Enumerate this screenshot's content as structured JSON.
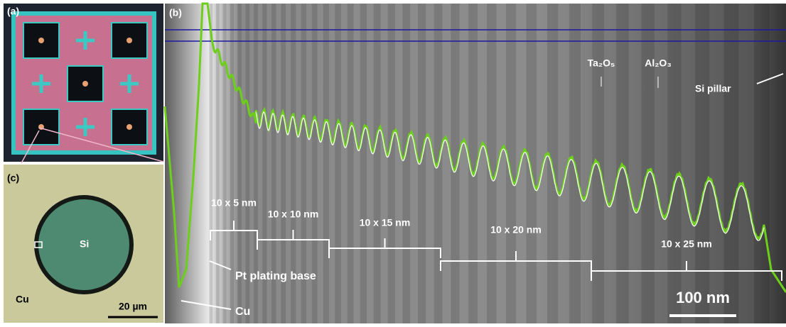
{
  "panel_a": {
    "label": "(a)"
  },
  "panel_b": {
    "label": "(b)",
    "layer_labels": [
      "Ta₂O₅",
      "Al₂O₃"
    ],
    "si_pillar": "Si pillar",
    "brackets": [
      "10 x 5 nm",
      "10 x 10 nm",
      "10 x 15 nm",
      "10 x 20 nm",
      "10 x 25 nm"
    ],
    "pt_label": "Pt plating base",
    "cu_label": "Cu",
    "scale_bar": "100 nm"
  },
  "panel_c": {
    "label": "(c)",
    "si": "Si",
    "cu": "Cu",
    "scale_bar": "20 µm"
  }
}
